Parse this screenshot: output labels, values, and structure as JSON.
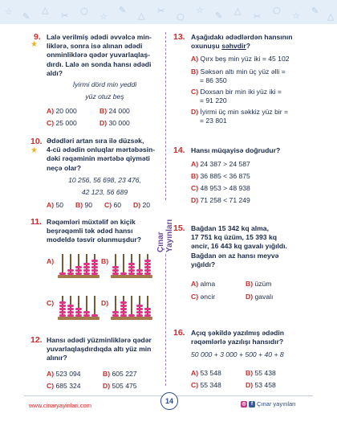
{
  "header_decor": [
    "☆",
    "✎",
    "△",
    "✂",
    "○",
    "☆",
    "✎",
    "△",
    "✂",
    "○",
    "☆",
    "✎",
    "△",
    "✂",
    "○",
    "☆",
    "✎",
    "△"
  ],
  "brand_vertical": "Çınar Yayınları",
  "q9": {
    "num": "9.",
    "lines": [
      "Lalə verilmiş ədədi əvvəlcə min-",
      "liklərə, sonra isə alınan ədədi",
      "onminliklərə qədər yuvarlaqlaş-",
      "dırdı. Lalə ən sonda hansı ədədi",
      "aldı?"
    ],
    "italic": [
      "İyirmi dörd min yeddi",
      "yüz otuz beş"
    ],
    "options": [
      {
        "l": "A)",
        "v": "20 000"
      },
      {
        "l": "B)",
        "v": "24 000"
      },
      {
        "l": "C)",
        "v": "25 000"
      },
      {
        "l": "D)",
        "v": "30 000"
      }
    ]
  },
  "q10": {
    "num": "10.",
    "lines": [
      "Ədədləri artan sıra ilə düzsək,",
      "4-cü ədədin onluqlar mərtəbəsin-",
      "dəki rəqəminin mərtəbə qiyməti",
      "neçə olar?"
    ],
    "italic": [
      "10 256, 56 698, 23 476,",
      "42 123, 56 689"
    ],
    "options": [
      {
        "l": "A)",
        "v": "50"
      },
      {
        "l": "B)",
        "v": "90"
      },
      {
        "l": "C)",
        "v": "60"
      },
      {
        "l": "D)",
        "v": "20"
      }
    ]
  },
  "q11": {
    "num": "11.",
    "lines": [
      "Rəqəmləri müxtəlif ən kiçik",
      "beşrəqəmli tək ədəd hansı",
      "modeldə təsvir olunmuşdur?"
    ],
    "labels": [
      "A)",
      "B)",
      "C)",
      "D)"
    ]
  },
  "q12": {
    "num": "12.",
    "lines": [
      "Hansı ədədi yüzminliklərə qədər",
      "yuvarlaqlaşdırdıqda altı yüz min",
      "alınır?"
    ],
    "options": [
      {
        "l": "A)",
        "v": "523 094"
      },
      {
        "l": "B)",
        "v": "605 227"
      },
      {
        "l": "C)",
        "v": "685 324"
      },
      {
        "l": "D)",
        "v": "505 475"
      }
    ]
  },
  "q13": {
    "num": "13.",
    "line1": "Aşağıdakı ədədlərdən hansının",
    "line2_pre": "oxunuşu ",
    "line2_u": "səhvdir",
    "line2_post": "?",
    "options": [
      {
        "l": "A)",
        "v": [
          "Qırx beş min yüz iki = 45 102"
        ]
      },
      {
        "l": "B)",
        "v": [
          "Səksən altı min üç yüz əlli =",
          "= 86 350"
        ]
      },
      {
        "l": "C)",
        "v": [
          "Doxsan bir min iki yüz iki =",
          "= 91 220"
        ]
      },
      {
        "l": "D)",
        "v": [
          "İyirmi üç min səkkiz yüz bir =",
          "= 23 801"
        ]
      }
    ]
  },
  "q14": {
    "num": "14.",
    "line": "Hansı müqayisə doğrudur?",
    "options": [
      {
        "l": "A)",
        "v": "24 387 > 24 587"
      },
      {
        "l": "B)",
        "v": "36 885 < 36 875"
      },
      {
        "l": "C)",
        "v": "48 953 > 48 938"
      },
      {
        "l": "D)",
        "v": "71 258 < 71 249"
      }
    ]
  },
  "q15": {
    "num": "15.",
    "lines": [
      "Bağdan 15 342 kq alma,",
      "17 751 kq üzüm, 15 393 kq",
      "əncir, 16 443 kq gavalı yığıldı.",
      "Bağdan ən az hansı meyvə",
      "yığıldı?"
    ],
    "options": [
      {
        "l": "A)",
        "v": "alma"
      },
      {
        "l": "B)",
        "v": "üzüm"
      },
      {
        "l": "C)",
        "v": "əncir"
      },
      {
        "l": "D)",
        "v": "gavalı"
      }
    ]
  },
  "q16": {
    "num": "16.",
    "lines": [
      "Açıq şəkildə yazılmış ədədin",
      "rəqəmlərlə yazılışı hansıdır?"
    ],
    "italic": "50 000 + 3 000 + 500 + 40 + 8",
    "options": [
      {
        "l": "A)",
        "v": "53 548"
      },
      {
        "l": "B)",
        "v": "55 438"
      },
      {
        "l": "C)",
        "v": "55 348"
      },
      {
        "l": "D)",
        "v": "53 458"
      }
    ]
  },
  "footer": {
    "website": "www.cinaryayinlari.com",
    "page": "14",
    "social_label": "Çınar yayınları",
    "icons": [
      "instagram-icon",
      "facebook-icon"
    ]
  },
  "colors": {
    "accent": "#cf2a2a",
    "text": "#1b2a4a",
    "bead": "#e0338a",
    "star": "#f2b21b"
  },
  "abacus_beads": [
    [
      1,
      2,
      3,
      4,
      5
    ],
    [
      3,
      1,
      4,
      2,
      5
    ],
    [
      5,
      4,
      3,
      2,
      1
    ],
    [
      2,
      5,
      1,
      4,
      3
    ]
  ]
}
